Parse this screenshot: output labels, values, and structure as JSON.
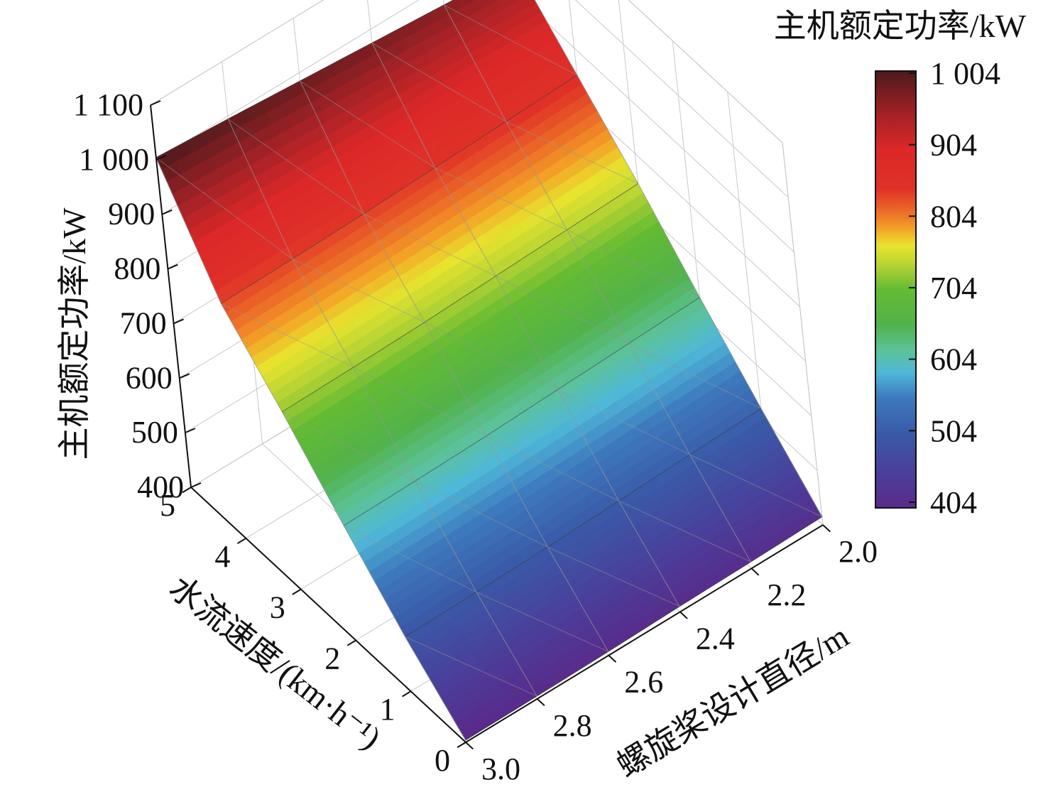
{
  "chart_data": {
    "type": "surface3d",
    "title": "",
    "z_axis": {
      "label": "主机额定功率/kW",
      "range": [
        400,
        1100
      ],
      "ticks": [
        "400",
        "500",
        "600",
        "700",
        "800",
        "900",
        "1 000",
        "1 100"
      ]
    },
    "x_axis": {
      "label": "螺旋桨设计直径/m",
      "range": [
        2.0,
        3.0
      ],
      "ticks": [
        "2.0",
        "2.2",
        "2.4",
        "2.6",
        "2.8",
        "3.0"
      ]
    },
    "y_axis": {
      "label": "水流速度/(km·h⁻¹)",
      "range": [
        0,
        5
      ],
      "ticks": [
        "0",
        "1",
        "2",
        "3",
        "4",
        "5"
      ]
    },
    "colorbar": {
      "label": "主机额定功率/kW",
      "range": [
        404,
        1004
      ],
      "ticks": [
        "404",
        "504",
        "604",
        "704",
        "804",
        "904",
        "1 004"
      ]
    },
    "surface": {
      "diameters_m": [
        2.0,
        2.2,
        2.4,
        2.6,
        2.8,
        3.0
      ],
      "speeds_kmh": [
        0,
        1,
        2,
        3,
        4,
        5
      ],
      "power_kW": [
        [
          415,
          520,
          630,
          745,
          850,
          955
        ],
        [
          412,
          515,
          625,
          740,
          845,
          965
        ],
        [
          410,
          510,
          620,
          735,
          840,
          975
        ],
        [
          407,
          505,
          615,
          730,
          835,
          985
        ],
        [
          405,
          502,
          612,
          727,
          832,
          995
        ],
        [
          404,
          500,
          610,
          725,
          830,
          1004
        ]
      ]
    },
    "grid": true,
    "legend": "colorbar-right"
  }
}
